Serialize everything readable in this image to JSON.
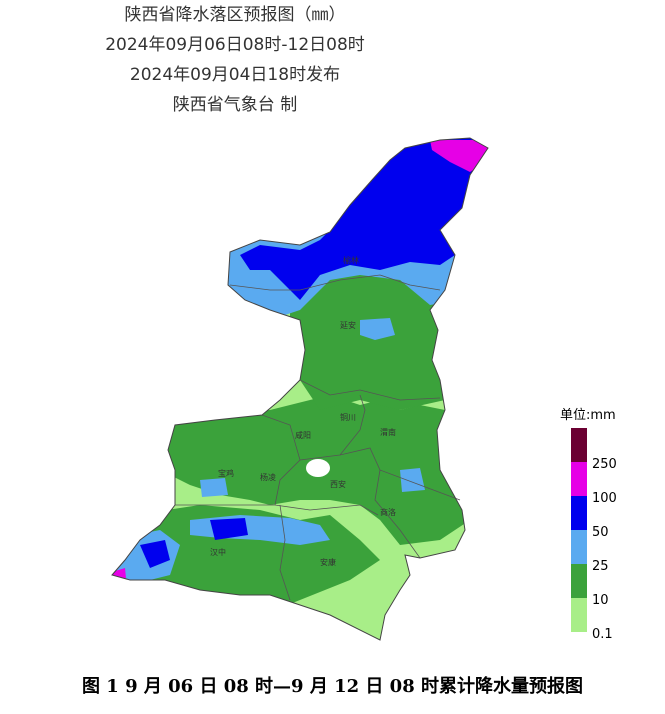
{
  "header": {
    "title": "陕西省降水落区预报图（㎜）",
    "period": "2024年09月06日08时-12日08时",
    "issued": "2024年09月04日18时发布",
    "agency": "陕西省气象台 制"
  },
  "legend": {
    "title": "单位:mm",
    "items": [
      {
        "label": "250",
        "color": "#6b0032"
      },
      {
        "label": "100",
        "color": "#e600e6"
      },
      {
        "label": "50",
        "color": "#0000ee"
      },
      {
        "label": "25",
        "color": "#5aaaf0"
      },
      {
        "label": "10",
        "color": "#3ba23b"
      },
      {
        "label": "0.1",
        "color": "#a8ee88"
      }
    ]
  },
  "cities": [
    "榆林",
    "延安",
    "铜川",
    "渭南",
    "咸阳",
    "宝鸡",
    "杨凌",
    "西安",
    "商洛",
    "汉中",
    "安康"
  ],
  "caption": "图 1 9 月 06 日 08 时—9 月 12 日 08 时累计降水量预报图"
}
